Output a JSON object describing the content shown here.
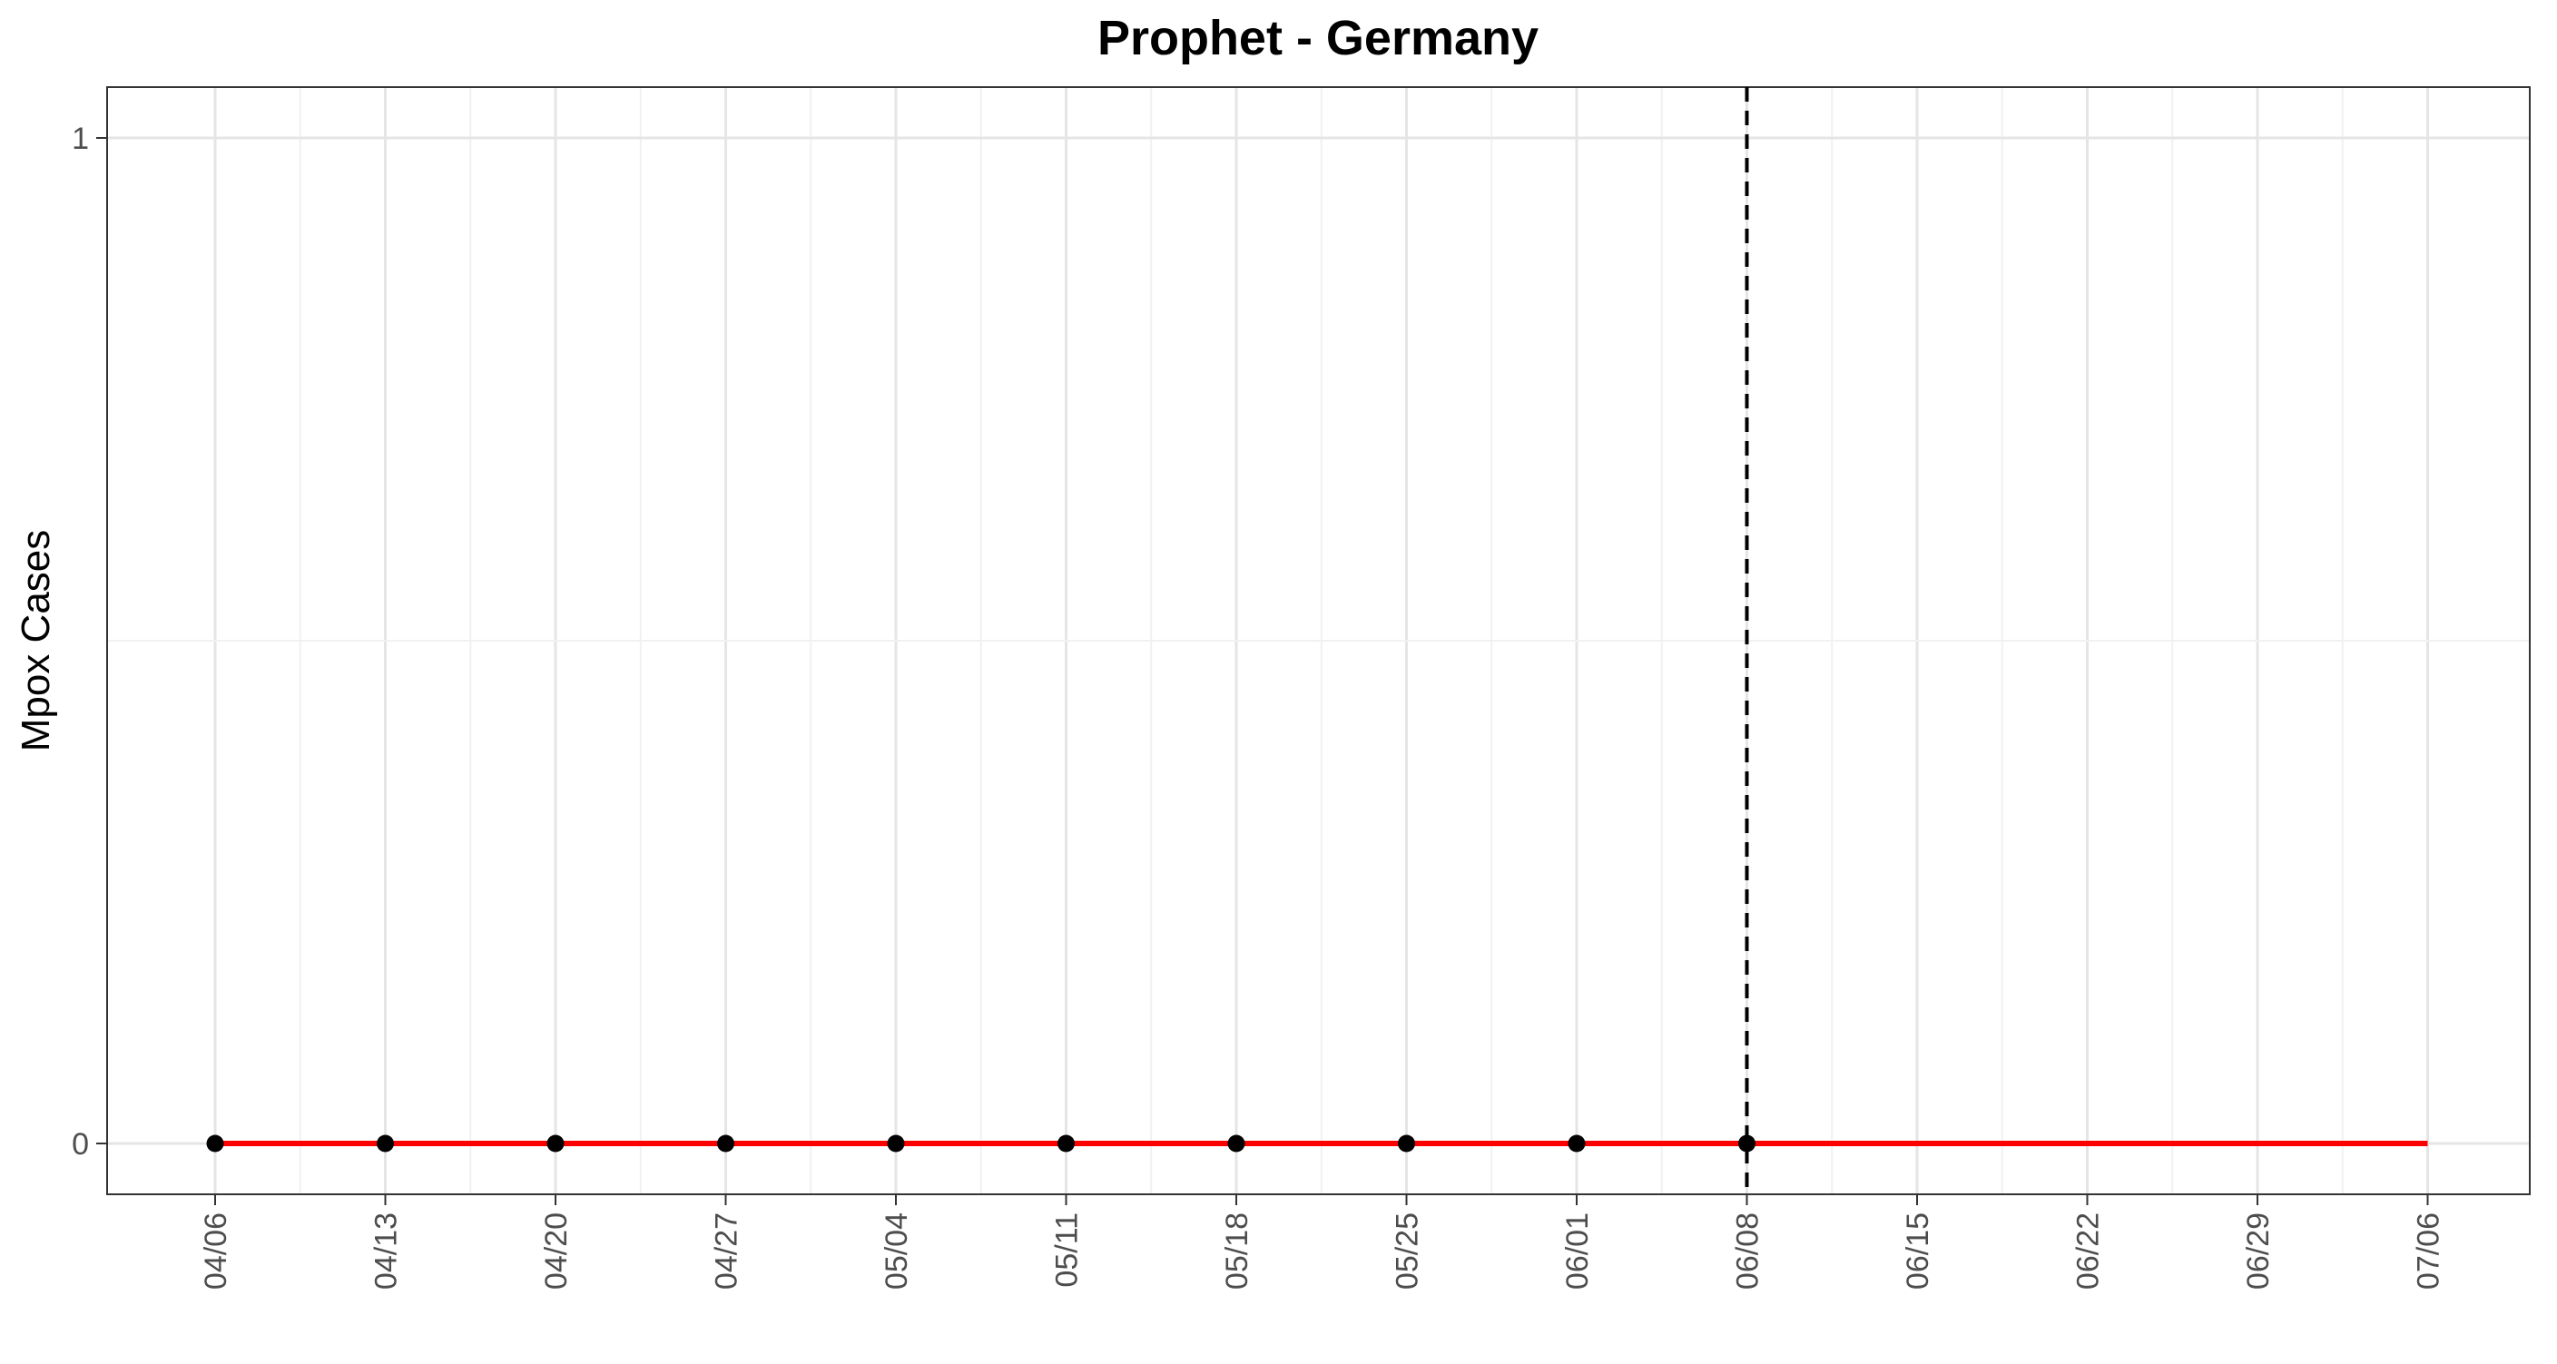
{
  "chart_data": {
    "type": "line",
    "title": "Prophet - Germany",
    "xlabel": "",
    "ylabel": "Mpox Cases",
    "x_tick_labels": [
      "04/06",
      "04/13",
      "04/20",
      "04/27",
      "05/04",
      "05/11",
      "05/18",
      "05/25",
      "06/01",
      "06/08",
      "06/15",
      "06/22",
      "06/29",
      "07/06"
    ],
    "y_tick_labels": [
      "0",
      "1"
    ],
    "ylim": [
      -0.05,
      1.05
    ],
    "grid": true,
    "observed": {
      "dates": [
        "04/06",
        "04/13",
        "04/20",
        "04/27",
        "05/04",
        "05/11",
        "05/18",
        "05/25",
        "06/01",
        "06/08"
      ],
      "values": [
        0,
        0,
        0,
        0,
        0,
        0,
        0,
        0,
        0,
        0
      ],
      "color": "#000000"
    },
    "forecast": {
      "dates": [
        "04/06",
        "04/13",
        "04/20",
        "04/27",
        "05/04",
        "05/11",
        "05/18",
        "05/25",
        "06/01",
        "06/08",
        "06/15",
        "06/22",
        "06/29",
        "07/06"
      ],
      "values": [
        0,
        0,
        0,
        0,
        0,
        0,
        0,
        0,
        0,
        0,
        0,
        0,
        0,
        0
      ],
      "color": "#ff0000"
    },
    "vline": {
      "date": "06/08",
      "style": "dashed",
      "color": "#000000"
    }
  }
}
